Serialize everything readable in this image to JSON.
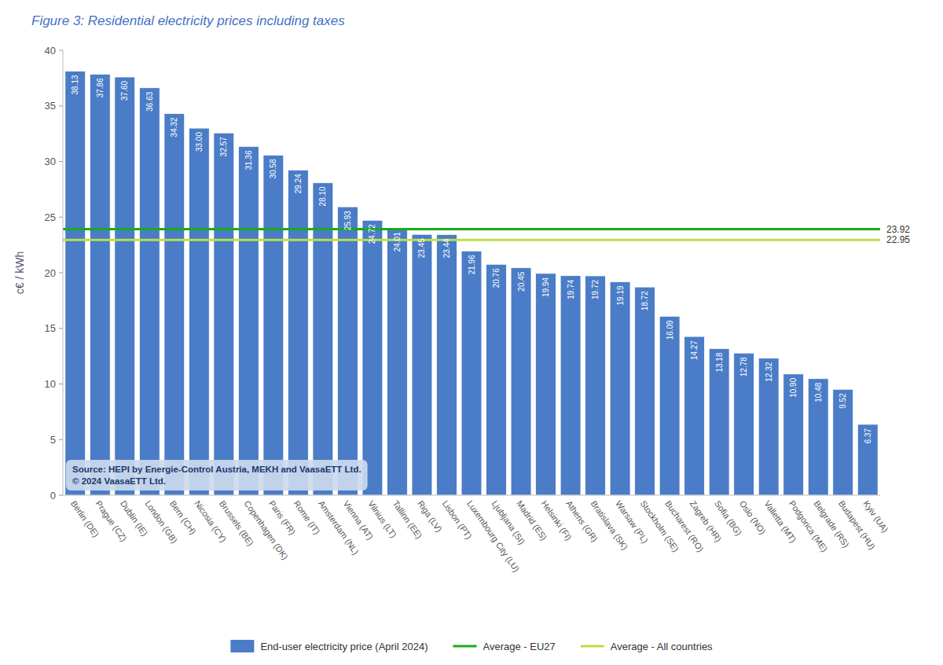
{
  "chart_data": {
    "type": "bar",
    "title": "Figure 3: Residential electricity prices including taxes",
    "ylabel": "c€ / kWh",
    "categories": [
      "Berlin (DE)",
      "Prague (CZ)",
      "Dublin (IE)",
      "London (GB)",
      "Bern (CH)",
      "Nicosia (CY)",
      "Brussels (BE)",
      "Copenhagen (DK)",
      "Paris (FR)",
      "Rome (IT)",
      "Amsterdam (NL)",
      "Vienna (AT)",
      "Vilnius (LT)",
      "Tallinn (EE)",
      "Riga (LV)",
      "Lisbon (PT)",
      "Luxembourg City (LU)",
      "Ljubljana (SI)",
      "Madrid (ES)",
      "Helsinki (FI)",
      "Athens (GR)",
      "Bratislava (SK)",
      "Warsaw (PL)",
      "Stockholm (SE)",
      "Bucharest (RO)",
      "Zagreb (HR)",
      "Sofia (BG)",
      "Oslo (NO)",
      "Valletta (MT)",
      "Podgorica (ME)",
      "Belgrade (RS)",
      "Budapest (HU)",
      "Kyiv (UA)"
    ],
    "series": [
      {
        "name": "End-user electricity price (April 2024)",
        "color": "#4a7cc7",
        "values": [
          38.13,
          37.86,
          37.6,
          36.63,
          34.32,
          33.0,
          32.57,
          31.36,
          30.58,
          29.24,
          28.1,
          25.93,
          24.72,
          24.01,
          23.45,
          23.44,
          21.96,
          20.76,
          20.45,
          19.94,
          19.74,
          19.72,
          19.19,
          18.72,
          16.09,
          14.27,
          13.18,
          12.78,
          12.32,
          10.9,
          10.48,
          9.52,
          6.37
        ],
        "value_labels": [
          "38.13",
          "37.86",
          "37.60",
          "36.63",
          "34.32",
          "33.00",
          "32.57",
          "31.36",
          "30.58",
          "29.24",
          "28.10",
          "25.93",
          "24.72",
          "24.01",
          "23.45",
          "23.44",
          "21.96",
          "20.76",
          "20.45",
          "19.94",
          "19.74",
          "19.72",
          "19.19",
          "18.72",
          "16.09",
          "14.27",
          "13.18",
          "12.78",
          "12.32",
          "10.90",
          "10.48",
          "9.52",
          "6.37"
        ]
      }
    ],
    "reference_lines": [
      {
        "name": "Average - EU27",
        "value": 23.92,
        "color": "#1aaa1a"
      },
      {
        "name": "Average - All countries",
        "value": 22.95,
        "color": "#b8e04a"
      }
    ],
    "annotations": [
      "Source: HEPI by Energie-Control Austria, MEKH and VaasaETT Ltd.\n© 2024 VaasaETT Ltd."
    ],
    "ylim": [
      0,
      40
    ],
    "yticks": [
      0,
      5,
      10,
      15,
      20,
      25,
      30,
      35,
      40
    ],
    "data_labels": true,
    "grid": false,
    "legend": "bottom"
  }
}
